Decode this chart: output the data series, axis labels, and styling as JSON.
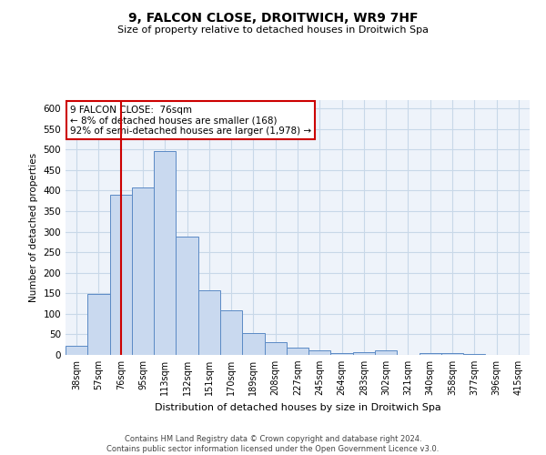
{
  "title": "9, FALCON CLOSE, DROITWICH, WR9 7HF",
  "subtitle": "Size of property relative to detached houses in Droitwich Spa",
  "xlabel": "Distribution of detached houses by size in Droitwich Spa",
  "ylabel": "Number of detached properties",
  "footer_line1": "Contains HM Land Registry data © Crown copyright and database right 2024.",
  "footer_line2": "Contains public sector information licensed under the Open Government Licence v3.0.",
  "categories": [
    "38sqm",
    "57sqm",
    "76sqm",
    "95sqm",
    "113sqm",
    "132sqm",
    "151sqm",
    "170sqm",
    "189sqm",
    "208sqm",
    "227sqm",
    "245sqm",
    "264sqm",
    "283sqm",
    "302sqm",
    "321sqm",
    "340sqm",
    "358sqm",
    "377sqm",
    "396sqm",
    "415sqm"
  ],
  "values": [
    23,
    148,
    390,
    408,
    495,
    287,
    158,
    108,
    53,
    31,
    17,
    12,
    5,
    7,
    10,
    0,
    4,
    5,
    3,
    0,
    0
  ],
  "bar_color": "#c9d9ef",
  "bar_edge_color": "#5b8ac5",
  "grid_color": "#c8d8e8",
  "background_color": "#eef3fa",
  "property_line_x": 2,
  "annotation_text_line1": "9 FALCON CLOSE:  76sqm",
  "annotation_text_line2": "← 8% of detached houses are smaller (168)",
  "annotation_text_line3": "92% of semi-detached houses are larger (1,978) →",
  "annotation_box_color": "#ffffff",
  "annotation_box_edge": "#cc0000",
  "vline_color": "#cc0000",
  "ylim": [
    0,
    620
  ],
  "yticks": [
    0,
    50,
    100,
    150,
    200,
    250,
    300,
    350,
    400,
    450,
    500,
    550,
    600
  ]
}
